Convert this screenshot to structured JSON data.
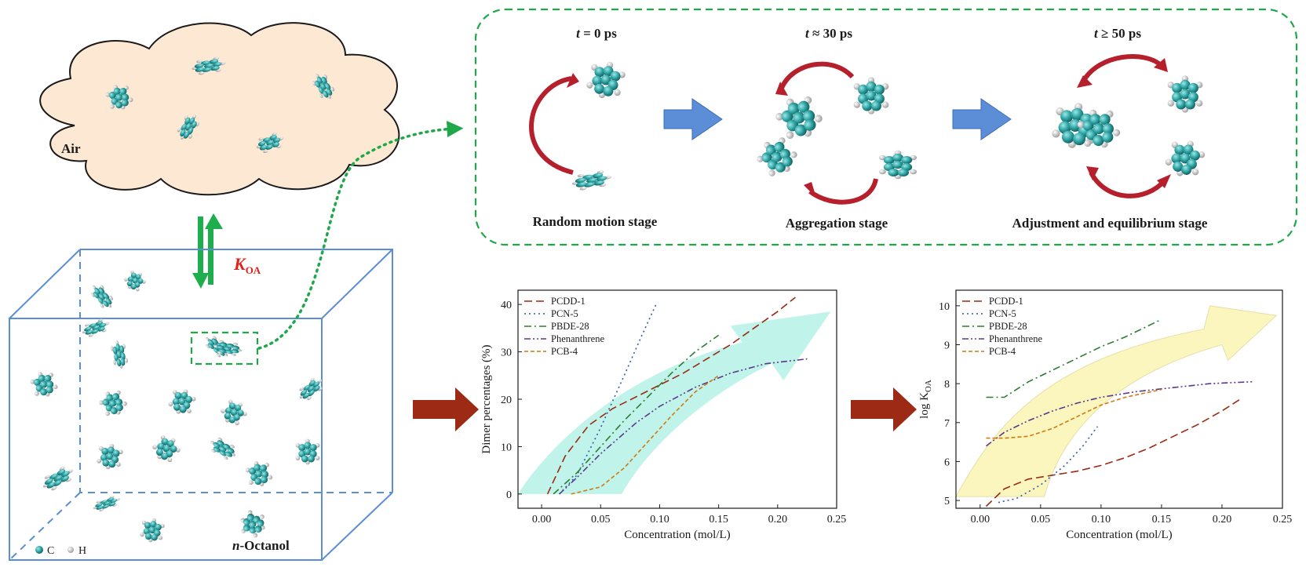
{
  "left_scene": {
    "cloud_label": "Air",
    "koa_main": "K",
    "koa_sub": "OA",
    "box_label_italic": "n",
    "box_label_rest": "-Octanol",
    "legend_c": "C",
    "legend_h": "H"
  },
  "stages": [
    {
      "time_italic": "t",
      "time_rest": " = 0 ps",
      "label": "Random motion stage"
    },
    {
      "time_italic": "t",
      "time_rest": " ≈ 30 ps",
      "label": "Aggregation stage"
    },
    {
      "time_italic": "t",
      "time_rest": " ≥ 50 ps",
      "label": "Adjustment and equilibrium stage"
    }
  ],
  "colors": {
    "dashed_green": "#1fa84a",
    "box_blue": "#5b8ed6",
    "stage_arrow_blue": "#5b8ed6",
    "red_arrow": "#b5202c",
    "brown_arrow": "#9c2a14",
    "cloud_fill": "#fde9d3",
    "atom_c": "#2fa3a3",
    "atom_h": "#e6e6e6",
    "cyan_band": "#b9f3e8",
    "yellow_band": "#fbf5b8"
  },
  "chart_data": [
    {
      "type": "line",
      "xlabel": "Concentration (mol/L)",
      "ylabel": "Dimer percentages (%)",
      "xlim": [
        -0.02,
        0.25
      ],
      "ylim": [
        -3,
        43
      ],
      "xticks": [
        "0.00",
        "0.05",
        "0.10",
        "0.15",
        "0.20",
        "0.25"
      ],
      "xtick_values": [
        0,
        0.05,
        0.1,
        0.15,
        0.2,
        0.25
      ],
      "yticks": [
        "0",
        "10",
        "20",
        "30",
        "40"
      ],
      "ytick_values": [
        0,
        10,
        20,
        30,
        40
      ],
      "legend_position": "top-left",
      "series": [
        {
          "name": "PCDD-1",
          "color": "#9c2a14",
          "dash": "long-dash",
          "x": [
            0.005,
            0.02,
            0.04,
            0.06,
            0.08,
            0.1,
            0.12,
            0.14,
            0.16,
            0.18,
            0.2,
            0.215
          ],
          "y": [
            0,
            8,
            14.5,
            18,
            20.5,
            23,
            25.5,
            28.5,
            31.5,
            35,
            38.5,
            41.5
          ]
        },
        {
          "name": "PCN-5",
          "color": "#2f5ba8",
          "dash": "dot",
          "x": [
            0.015,
            0.03,
            0.05,
            0.07,
            0.085,
            0.097
          ],
          "y": [
            0,
            4,
            14,
            25,
            33.5,
            40
          ]
        },
        {
          "name": "PBDE-28",
          "color": "#2e7d32",
          "dash": "dash-dot",
          "x": [
            0.01,
            0.03,
            0.05,
            0.07,
            0.09,
            0.11,
            0.13,
            0.15
          ],
          "y": [
            0,
            4.5,
            10,
            15.5,
            20.5,
            25.5,
            30,
            33.5
          ]
        },
        {
          "name": "Phenanthrene",
          "color": "#5a3a8a",
          "dash": "dash-dot-dot",
          "x": [
            0.015,
            0.03,
            0.05,
            0.08,
            0.1,
            0.13,
            0.16,
            0.19,
            0.225
          ],
          "y": [
            0,
            3.5,
            8.5,
            15,
            18.5,
            22.5,
            25.5,
            27.5,
            28.5
          ]
        },
        {
          "name": "PCB-4",
          "color": "#d07a10",
          "dash": "short-dash",
          "x": [
            0.025,
            0.05,
            0.07,
            0.09,
            0.11,
            0.13,
            0.15
          ],
          "y": [
            0,
            1.5,
            5.5,
            11,
            16.5,
            21.5,
            25
          ]
        }
      ]
    },
    {
      "type": "line",
      "xlabel": "Concentration (mol/L)",
      "ylabel_main": "log K",
      "ylabel_sub": "OA",
      "xlim": [
        -0.02,
        0.25
      ],
      "ylim": [
        4.8,
        10.4
      ],
      "xticks": [
        "0.00",
        "0.05",
        "0.10",
        "0.15",
        "0.20",
        "0.25"
      ],
      "xtick_values": [
        0,
        0.05,
        0.1,
        0.15,
        0.2,
        0.25
      ],
      "yticks": [
        "5",
        "6",
        "7",
        "8",
        "9",
        "10"
      ],
      "ytick_values": [
        5,
        6,
        7,
        8,
        9,
        10
      ],
      "legend_position": "top-left",
      "series": [
        {
          "name": "PCDD-1",
          "color": "#9c2a14",
          "dash": "long-dash",
          "x": [
            0.005,
            0.02,
            0.04,
            0.06,
            0.08,
            0.1,
            0.12,
            0.14,
            0.16,
            0.18,
            0.2,
            0.215
          ],
          "y": [
            4.85,
            5.3,
            5.55,
            5.65,
            5.75,
            5.9,
            6.1,
            6.35,
            6.65,
            6.95,
            7.3,
            7.6
          ]
        },
        {
          "name": "PCN-5",
          "color": "#2f5ba8",
          "dash": "dot",
          "x": [
            0.015,
            0.03,
            0.05,
            0.07,
            0.085,
            0.097
          ],
          "y": [
            4.95,
            5.05,
            5.4,
            5.9,
            6.4,
            6.9
          ]
        },
        {
          "name": "PBDE-28",
          "color": "#2e7d32",
          "dash": "dash-dot",
          "x": [
            0.005,
            0.02,
            0.04,
            0.06,
            0.08,
            0.1,
            0.12,
            0.15
          ],
          "y": [
            7.65,
            7.65,
            8.05,
            8.35,
            8.65,
            8.95,
            9.2,
            9.65
          ]
        },
        {
          "name": "Phenanthrene",
          "color": "#5a3a8a",
          "dash": "dash-dot-dot",
          "x": [
            0.005,
            0.02,
            0.04,
            0.06,
            0.08,
            0.1,
            0.13,
            0.16,
            0.19,
            0.225
          ],
          "y": [
            6.4,
            6.75,
            7.05,
            7.3,
            7.5,
            7.65,
            7.8,
            7.9,
            8.0,
            8.05
          ]
        },
        {
          "name": "PCB-4",
          "color": "#d07a10",
          "dash": "short-dash",
          "x": [
            0.005,
            0.02,
            0.04,
            0.06,
            0.08,
            0.1,
            0.12,
            0.15
          ],
          "y": [
            6.6,
            6.6,
            6.65,
            6.85,
            7.15,
            7.45,
            7.65,
            7.85
          ]
        }
      ]
    }
  ]
}
